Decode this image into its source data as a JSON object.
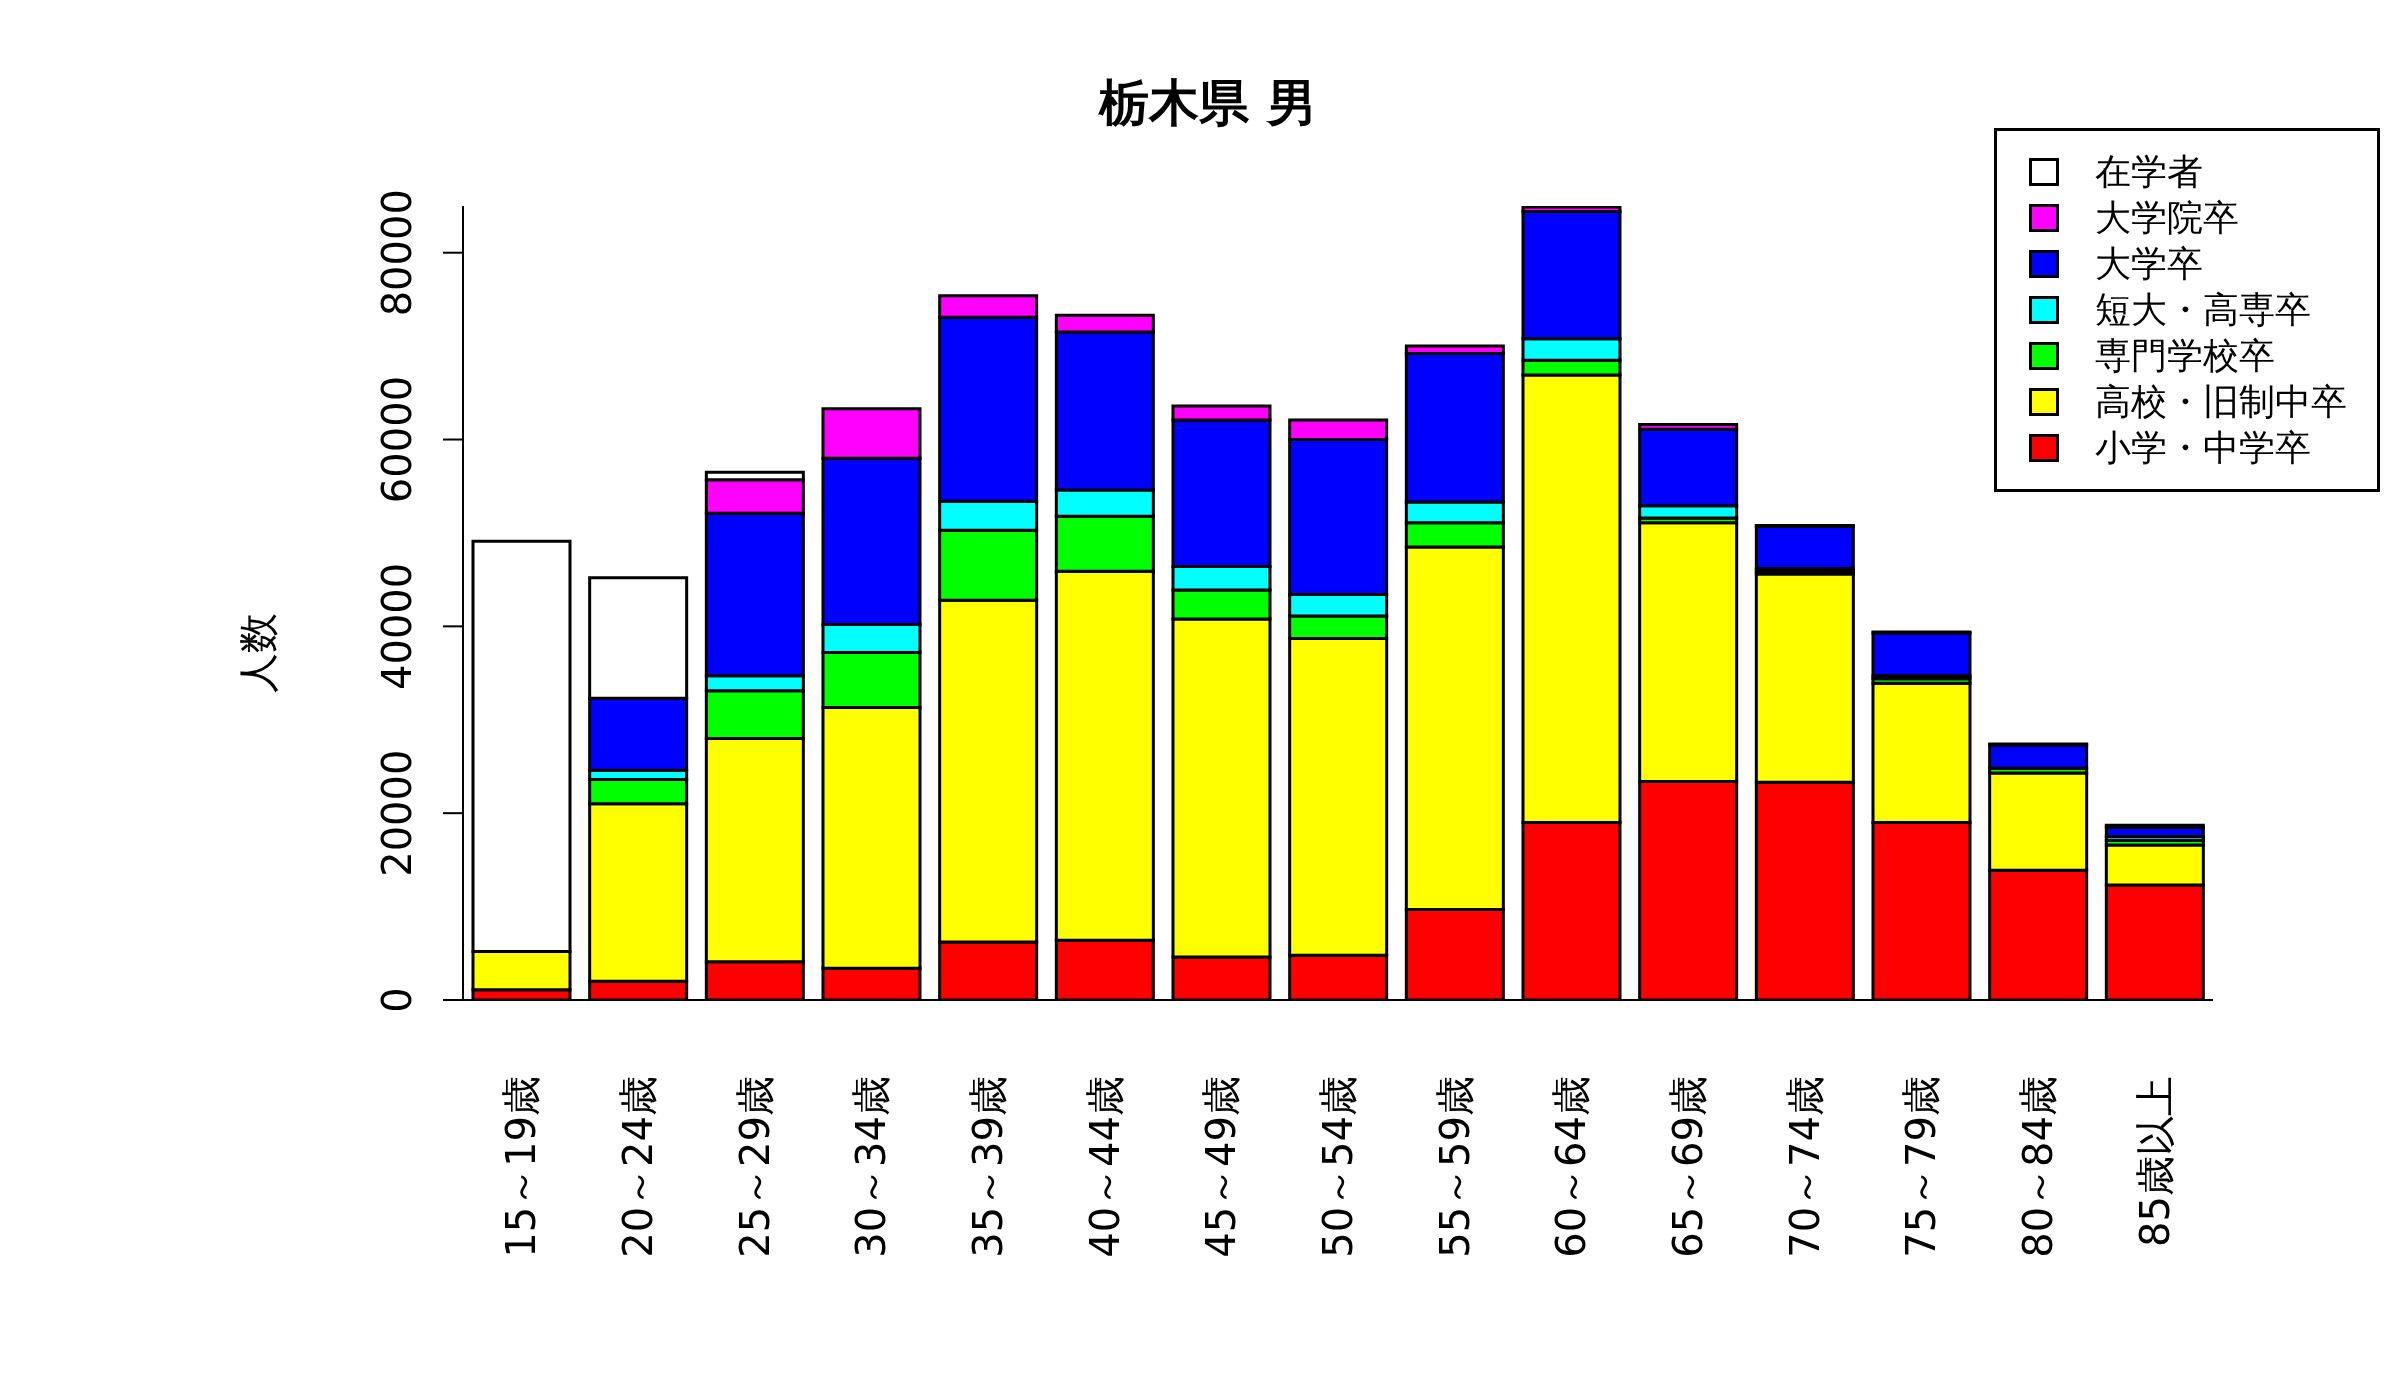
{
  "chart_data": {
    "type": "bar",
    "title": "栃木県 男",
    "ylabel": "人数",
    "stacked": true,
    "categories": [
      "15～19歳",
      "20～24歳",
      "25～29歳",
      "30～34歳",
      "35～39歳",
      "40～44歳",
      "45～49歳",
      "50～54歳",
      "55～59歳",
      "60～64歳",
      "65～69歳",
      "70～74歳",
      "75～79歳",
      "80～84歳",
      "85歳以上"
    ],
    "series": [
      {
        "name": "小学・中学卒",
        "color": "#ff0000",
        "values": [
          1100,
          2000,
          4100,
          3400,
          6200,
          6400,
          4600,
          4800,
          9700,
          19000,
          23400,
          23300,
          19000,
          13900,
          12300
        ]
      },
      {
        "name": "高校・旧制中卒",
        "color": "#ffff00",
        "values": [
          4100,
          19000,
          23900,
          27900,
          36600,
          39500,
          36200,
          33900,
          38800,
          47900,
          27700,
          22300,
          14900,
          10400,
          4300
        ]
      },
      {
        "name": "専門学校卒",
        "color": "#00ff00",
        "values": [
          0,
          2600,
          5100,
          5900,
          7500,
          5900,
          3100,
          2400,
          2600,
          1600,
          500,
          300,
          500,
          500,
          500
        ]
      },
      {
        "name": "短大・高専卒",
        "color": "#00ffff",
        "values": [
          0,
          1000,
          1600,
          3000,
          3100,
          2800,
          2500,
          2300,
          2200,
          2300,
          1300,
          300,
          300,
          null,
          400
        ]
      },
      {
        "name": "大学卒",
        "color": "#0000ff",
        "values": [
          0,
          7700,
          17400,
          17800,
          19700,
          16900,
          15700,
          16600,
          15900,
          13600,
          8200,
          4500,
          4600,
          2500,
          1000
        ]
      },
      {
        "name": "大学院卒",
        "color": "#ff00ff",
        "values": [
          0,
          0,
          3600,
          5300,
          2300,
          1800,
          1500,
          2100,
          800,
          500,
          500,
          100,
          100,
          100,
          200
        ]
      },
      {
        "name": "在学者",
        "color": "#ffffff",
        "values": [
          43900,
          12900,
          800,
          0,
          0,
          0,
          0,
          0,
          0,
          0,
          0,
          0,
          0,
          0,
          0
        ]
      }
    ],
    "ylim": [
      0,
      85000
    ],
    "yticks": [
      0,
      20000,
      40000,
      60000,
      80000
    ],
    "grid": false,
    "legend": "top right"
  }
}
